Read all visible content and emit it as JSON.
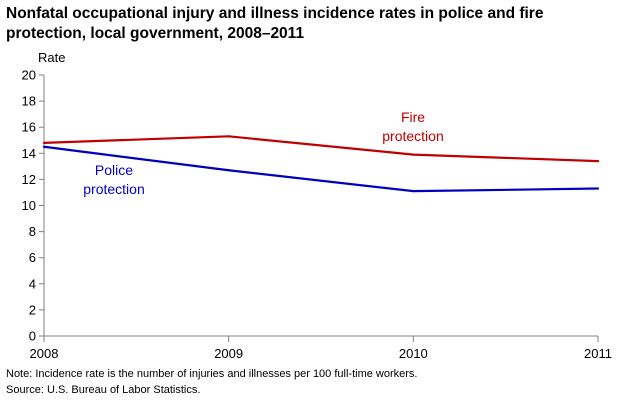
{
  "chart_data": {
    "type": "line",
    "title": "Nonfatal occupational injury and illness incidence rates in police and fire protection, local government, 2008–2011",
    "ylabel": "Rate",
    "xlabel": "",
    "x": [
      2008,
      2009,
      2010,
      2011
    ],
    "ylim": [
      0,
      20
    ],
    "yticks": [
      0,
      2,
      4,
      6,
      8,
      10,
      12,
      14,
      16,
      18,
      20
    ],
    "grid": false,
    "series": [
      {
        "name_lines": [
          "Fire",
          "protection"
        ],
        "color": "#c00000",
        "values": [
          14.8,
          15.3,
          13.9,
          13.4
        ]
      },
      {
        "name_lines": [
          "Police",
          "protection"
        ],
        "color": "#0000c0",
        "values": [
          14.5,
          12.7,
          11.1,
          11.3
        ]
      }
    ]
  },
  "notes": {
    "note": "Note: Incidence rate is the number of injuries and illnesses per 100 full-time workers.",
    "source": "Source: U.S. Bureau of Labor Statistics."
  }
}
